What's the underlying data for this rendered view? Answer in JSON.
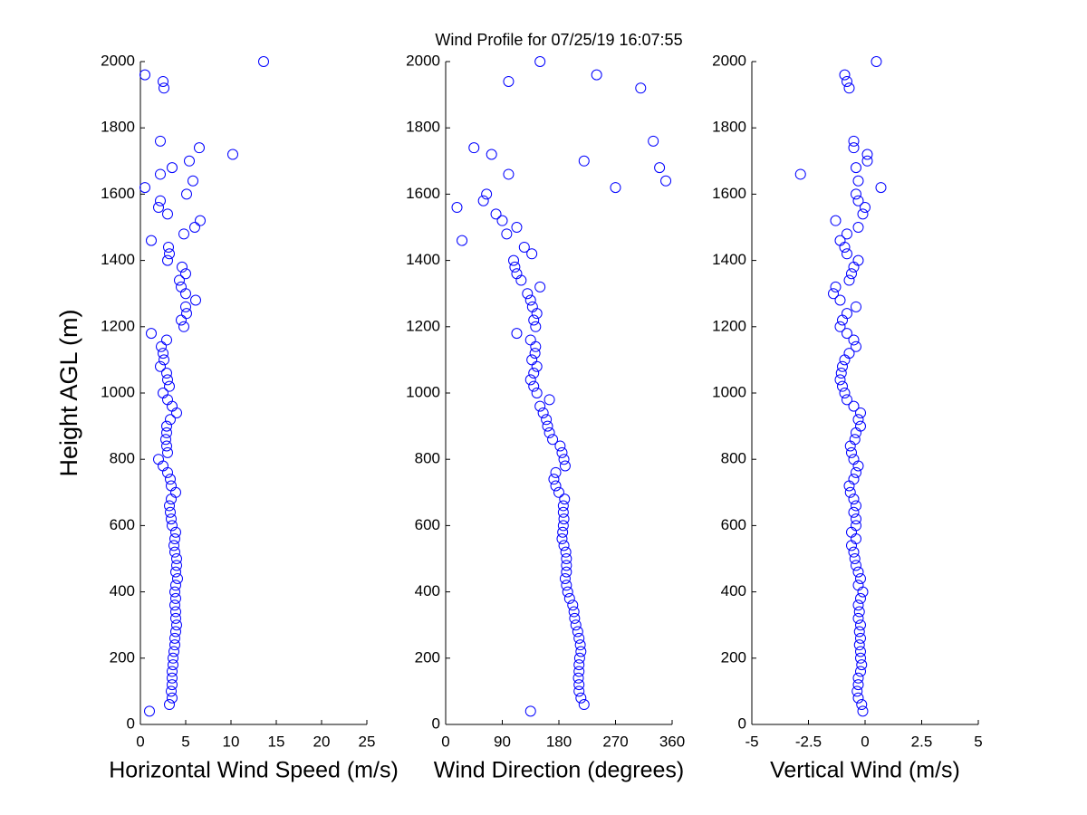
{
  "title": "Wind Profile for  07/25/19 16:07:55",
  "chart_data": [
    {
      "type": "scatter",
      "xlabel": "Horizontal Wind Speed (m/s)",
      "ylabel": "Height AGL (m)",
      "color": "#0000ff",
      "xlim": [
        0,
        25
      ],
      "xticks": [
        0,
        5,
        10,
        15,
        20,
        25
      ],
      "ylim": [
        0,
        2000
      ],
      "yticks": [
        0,
        200,
        400,
        600,
        800,
        1000,
        1200,
        1400,
        1600,
        1800,
        2000
      ],
      "x": [
        1.0,
        3.2,
        3.5,
        3.4,
        3.5,
        3.5,
        3.5,
        3.6,
        3.6,
        3.7,
        3.8,
        3.8,
        3.9,
        4.0,
        3.9,
        3.9,
        3.8,
        3.9,
        3.8,
        3.9,
        4.1,
        3.9,
        4.0,
        4.0,
        3.8,
        3.7,
        3.8,
        3.9,
        3.5,
        3.4,
        3.3,
        3.2,
        3.4,
        3.9,
        3.4,
        3.3,
        3.0,
        2.5,
        2.0,
        3.0,
        2.9,
        2.8,
        2.9,
        2.9,
        3.3,
        4.0,
        3.5,
        3.0,
        2.5,
        3.2,
        3.0,
        2.9,
        2.2,
        2.6,
        2.5,
        2.3,
        2.9,
        1.2,
        4.8,
        4.5,
        5.1,
        5.0,
        6.1,
        5.0,
        4.5,
        4.3,
        5.0,
        4.6,
        3.0,
        3.2,
        3.1,
        1.2,
        4.8,
        6.0,
        6.6,
        3.0,
        2.0,
        2.2,
        5.1,
        0.5,
        5.8,
        2.2,
        3.5,
        5.4,
        10.2,
        6.5,
        2.2,
        2.6,
        2.5,
        0.5,
        13.6
      ],
      "y": [
        40,
        60,
        80,
        100,
        120,
        140,
        160,
        180,
        200,
        220,
        240,
        260,
        280,
        300,
        320,
        340,
        360,
        380,
        400,
        420,
        440,
        460,
        480,
        500,
        520,
        540,
        560,
        580,
        600,
        620,
        640,
        660,
        680,
        700,
        720,
        740,
        760,
        780,
        800,
        820,
        840,
        860,
        880,
        900,
        920,
        940,
        960,
        980,
        1000,
        1020,
        1040,
        1060,
        1080,
        1100,
        1120,
        1140,
        1160,
        1180,
        1200,
        1220,
        1240,
        1260,
        1280,
        1300,
        1320,
        1340,
        1360,
        1380,
        1400,
        1420,
        1440,
        1460,
        1480,
        1500,
        1520,
        1540,
        1560,
        1580,
        1600,
        1620,
        1640,
        1660,
        1680,
        1700,
        1720,
        1740,
        1760,
        1920,
        1940,
        1960,
        2000
      ]
    },
    {
      "type": "scatter",
      "xlabel": "Wind Direction (degrees)",
      "color": "#0000ff",
      "xlim": [
        0,
        360
      ],
      "xticks": [
        0,
        90,
        180,
        270,
        360
      ],
      "ylim": [
        0,
        2000
      ],
      "yticks": [
        0,
        200,
        400,
        600,
        800,
        1000,
        1200,
        1400,
        1600,
        1800,
        2000
      ],
      "x": [
        135,
        220,
        215,
        212,
        212,
        211,
        212,
        212,
        213,
        215,
        214,
        212,
        210,
        207,
        205,
        204,
        202,
        197,
        194,
        192,
        190,
        192,
        192,
        192,
        191,
        188,
        185,
        186,
        187,
        188,
        187,
        187,
        189,
        180,
        175,
        172,
        175,
        190,
        188,
        185,
        182,
        170,
        165,
        162,
        160,
        155,
        150,
        165,
        145,
        140,
        135,
        140,
        145,
        137,
        142,
        143,
        135,
        113,
        143,
        140,
        145,
        138,
        135,
        130,
        150,
        120,
        113,
        110,
        108,
        137,
        125,
        26,
        97,
        113,
        90,
        80,
        18,
        60,
        65,
        270,
        350,
        100,
        340,
        220,
        73,
        45,
        330,
        310,
        100,
        240,
        150
      ],
      "y": [
        40,
        60,
        80,
        100,
        120,
        140,
        160,
        180,
        200,
        220,
        240,
        260,
        280,
        300,
        320,
        340,
        360,
        380,
        400,
        420,
        440,
        460,
        480,
        500,
        520,
        540,
        560,
        580,
        600,
        620,
        640,
        660,
        680,
        700,
        720,
        740,
        760,
        780,
        800,
        820,
        840,
        860,
        880,
        900,
        920,
        940,
        960,
        980,
        1000,
        1020,
        1040,
        1060,
        1080,
        1100,
        1120,
        1140,
        1160,
        1180,
        1200,
        1220,
        1240,
        1260,
        1280,
        1300,
        1320,
        1340,
        1360,
        1380,
        1400,
        1420,
        1440,
        1460,
        1480,
        1500,
        1520,
        1540,
        1560,
        1580,
        1600,
        1620,
        1640,
        1660,
        1680,
        1700,
        1720,
        1740,
        1760,
        1920,
        1940,
        1960,
        2000
      ]
    },
    {
      "type": "scatter",
      "xlabel": "Vertical Wind (m/s)",
      "color": "#0000ff",
      "xlim": [
        -5,
        5
      ],
      "xticks": [
        -5,
        -2.5,
        0,
        2.5,
        5
      ],
      "ylim": [
        0,
        2000
      ],
      "yticks": [
        0,
        200,
        400,
        600,
        800,
        1000,
        1200,
        1400,
        1600,
        1800,
        2000
      ],
      "x": [
        -0.1,
        -0.15,
        -0.3,
        -0.35,
        -0.3,
        -0.3,
        -0.2,
        -0.15,
        -0.2,
        -0.2,
        -0.25,
        -0.2,
        -0.25,
        -0.2,
        -0.3,
        -0.25,
        -0.3,
        -0.2,
        -0.1,
        -0.3,
        -0.2,
        -0.3,
        -0.4,
        -0.45,
        -0.5,
        -0.6,
        -0.4,
        -0.6,
        -0.4,
        -0.4,
        -0.5,
        -0.4,
        -0.5,
        -0.65,
        -0.7,
        -0.5,
        -0.4,
        -0.3,
        -0.5,
        -0.6,
        -0.65,
        -0.45,
        -0.4,
        -0.2,
        -0.3,
        -0.2,
        -0.5,
        -0.8,
        -0.9,
        -1.0,
        -1.1,
        -1.05,
        -1.0,
        -0.9,
        -0.7,
        -0.4,
        -0.5,
        -0.8,
        -1.1,
        -1.0,
        -0.8,
        -0.4,
        -1.1,
        -1.4,
        -1.3,
        -0.7,
        -0.6,
        -0.5,
        -0.3,
        -0.8,
        -0.9,
        -1.1,
        -0.8,
        -0.3,
        -1.3,
        -0.1,
        0,
        -0.3,
        -0.4,
        0.7,
        -0.3,
        -2.85,
        -0.4,
        0.1,
        0.1,
        -0.5,
        -0.5,
        -0.7,
        -0.8,
        -0.9,
        0.5
      ],
      "y": [
        40,
        60,
        80,
        100,
        120,
        140,
        160,
        180,
        200,
        220,
        240,
        260,
        280,
        300,
        320,
        340,
        360,
        380,
        400,
        420,
        440,
        460,
        480,
        500,
        520,
        540,
        560,
        580,
        600,
        620,
        640,
        660,
        680,
        700,
        720,
        740,
        760,
        780,
        800,
        820,
        840,
        860,
        880,
        900,
        920,
        940,
        960,
        980,
        1000,
        1020,
        1040,
        1060,
        1080,
        1100,
        1120,
        1140,
        1160,
        1180,
        1200,
        1220,
        1240,
        1260,
        1280,
        1300,
        1320,
        1340,
        1360,
        1380,
        1400,
        1420,
        1440,
        1460,
        1480,
        1500,
        1520,
        1540,
        1560,
        1580,
        1600,
        1620,
        1640,
        1660,
        1680,
        1700,
        1720,
        1740,
        1760,
        1920,
        1940,
        1960,
        2000
      ]
    }
  ]
}
